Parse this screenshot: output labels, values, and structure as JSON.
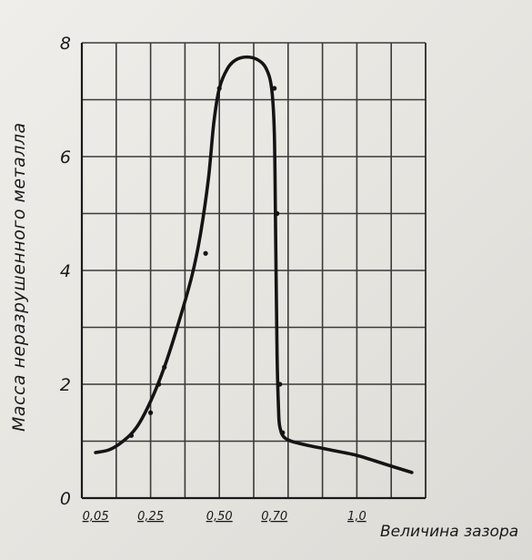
{
  "chart_data": {
    "type": "line",
    "title": "",
    "xlabel": "Величина зазора",
    "ylabel": "Масса неразрушенного металла",
    "x_tick_positions": [
      0.05,
      0.25,
      0.5,
      0.7,
      1.0
    ],
    "x_tick_labels": [
      "0,05",
      "0,25",
      "0,50",
      "0,70",
      "1,0"
    ],
    "y_ticks": [
      0,
      2,
      4,
      6,
      8
    ],
    "y_tick_labels": [
      "0",
      "2",
      "4",
      "6",
      "8"
    ],
    "xlim": [
      0,
      1.25
    ],
    "ylim": [
      0,
      8
    ],
    "grid": true,
    "series": [
      {
        "curve": [
          [
            0.05,
            0.8
          ],
          [
            0.1,
            0.85
          ],
          [
            0.15,
            1.0
          ],
          [
            0.2,
            1.25
          ],
          [
            0.25,
            1.7
          ],
          [
            0.3,
            2.3
          ],
          [
            0.35,
            3.05
          ],
          [
            0.4,
            3.9
          ],
          [
            0.43,
            4.6
          ],
          [
            0.46,
            5.6
          ],
          [
            0.48,
            6.6
          ],
          [
            0.5,
            7.2
          ],
          [
            0.53,
            7.55
          ],
          [
            0.56,
            7.7
          ],
          [
            0.6,
            7.75
          ],
          [
            0.64,
            7.7
          ],
          [
            0.67,
            7.55
          ],
          [
            0.69,
            7.2
          ],
          [
            0.7,
            6.4
          ],
          [
            0.705,
            4.5
          ],
          [
            0.71,
            2.5
          ],
          [
            0.715,
            1.6
          ],
          [
            0.72,
            1.25
          ],
          [
            0.74,
            1.05
          ],
          [
            0.8,
            0.95
          ],
          [
            0.9,
            0.85
          ],
          [
            1.0,
            0.75
          ],
          [
            1.1,
            0.6
          ],
          [
            1.2,
            0.45
          ]
        ],
        "points": [
          [
            0.18,
            1.1
          ],
          [
            0.25,
            1.5
          ],
          [
            0.28,
            2.0
          ],
          [
            0.3,
            2.3
          ],
          [
            0.45,
            4.3
          ],
          [
            0.5,
            7.2
          ],
          [
            0.7,
            7.2
          ],
          [
            0.71,
            5.0
          ],
          [
            0.72,
            2.0
          ],
          [
            0.73,
            1.15
          ]
        ]
      }
    ]
  }
}
